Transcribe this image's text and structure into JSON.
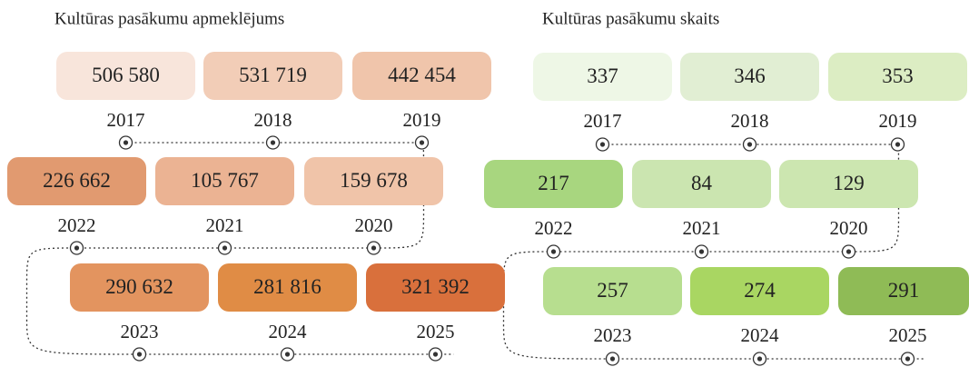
{
  "panels": [
    {
      "title": "Kultūras pasākumu apmeklējums",
      "items": [
        {
          "year": "2017",
          "value": "506 580",
          "color": "#f8e5db"
        },
        {
          "year": "2018",
          "value": "531 719",
          "color": "#f2cdb7"
        },
        {
          "year": "2019",
          "value": "442 454",
          "color": "#f0c5ab"
        },
        {
          "year": "2020",
          "value": "159 678",
          "color": "#f0c4a9"
        },
        {
          "year": "2021",
          "value": "105 767",
          "color": "#ebb393"
        },
        {
          "year": "2022",
          "value": "226 662",
          "color": "#e19a70"
        },
        {
          "year": "2023",
          "value": "290 632",
          "color": "#e3945f"
        },
        {
          "year": "2024",
          "value": "281 816",
          "color": "#e08c45"
        },
        {
          "year": "2025",
          "value": "321 392",
          "color": "#d9703c"
        }
      ]
    },
    {
      "title": "Kultūras pasākumu skaits",
      "items": [
        {
          "year": "2017",
          "value": "337",
          "color": "#eef7e6"
        },
        {
          "year": "2018",
          "value": "346",
          "color": "#e1eed3"
        },
        {
          "year": "2019",
          "value": "353",
          "color": "#dcedc3"
        },
        {
          "year": "2020",
          "value": "129",
          "color": "#cce6b0"
        },
        {
          "year": "2021",
          "value": "84",
          "color": "#cbe5b0"
        },
        {
          "year": "2022",
          "value": "217",
          "color": "#a8d67f"
        },
        {
          "year": "2023",
          "value": "257",
          "color": "#b7de8f"
        },
        {
          "year": "2024",
          "value": "274",
          "color": "#a9d662"
        },
        {
          "year": "2025",
          "value": "291",
          "color": "#8fbb56"
        }
      ]
    }
  ]
}
